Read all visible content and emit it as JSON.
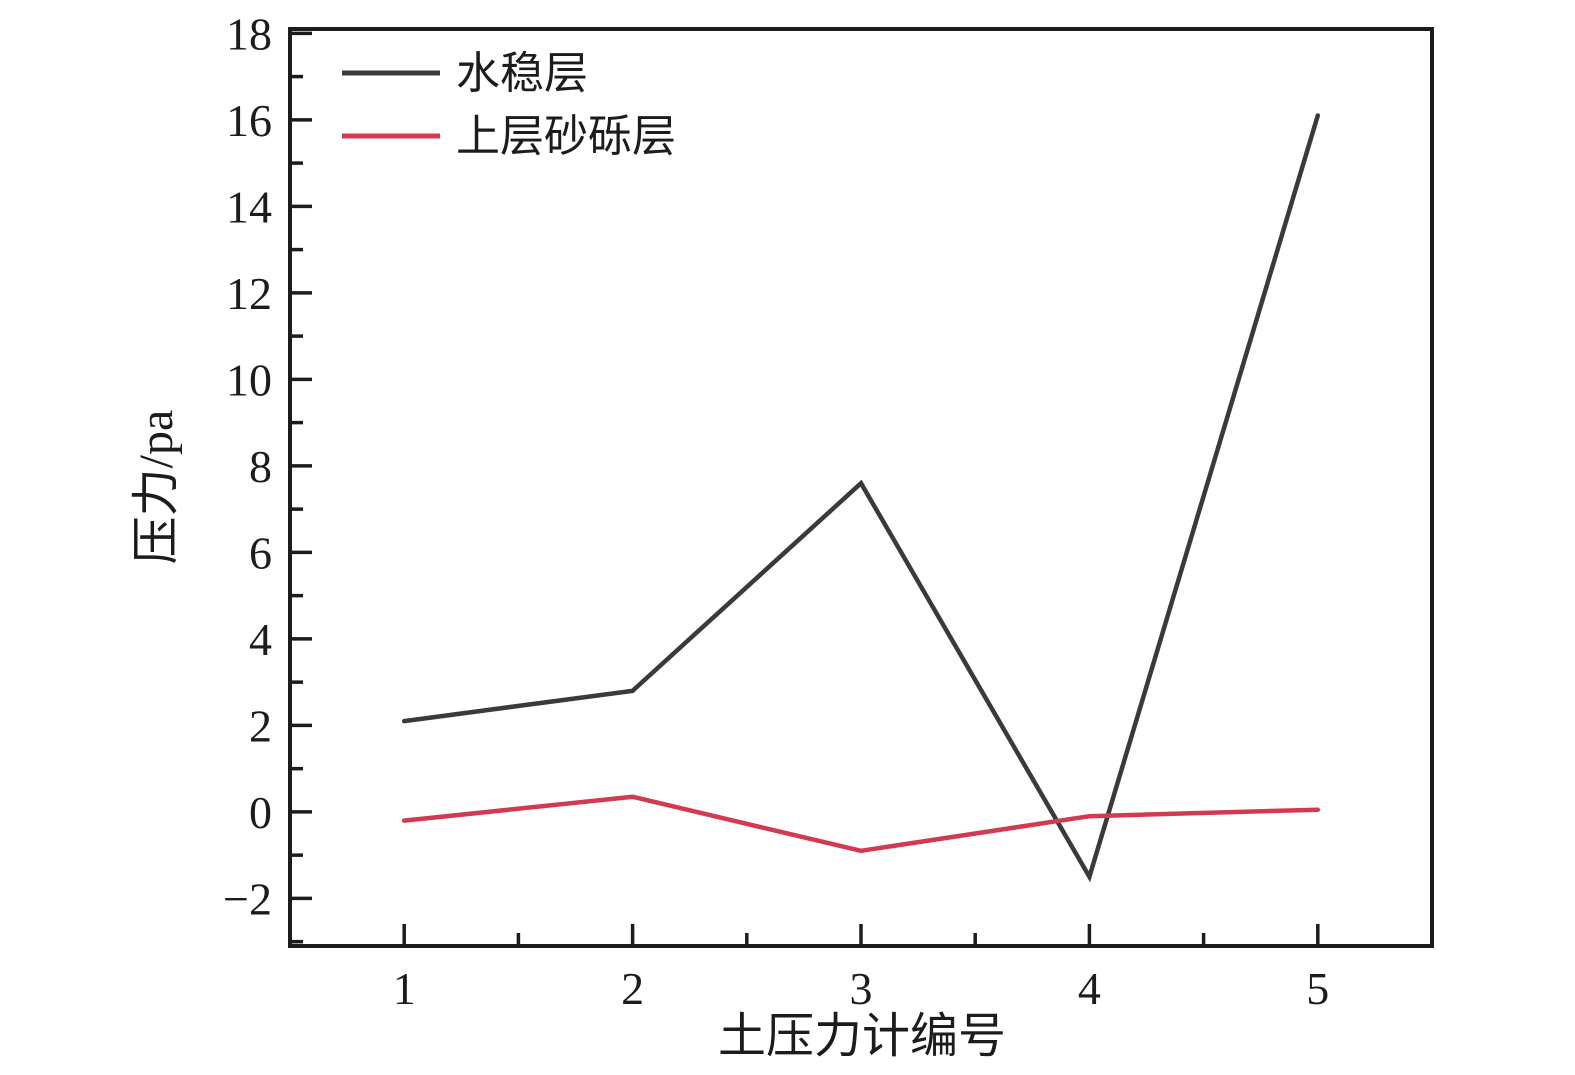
{
  "chart_data": {
    "type": "line",
    "title": "",
    "xlabel": "土压力计编号",
    "ylabel": "压力/pa",
    "x": [
      1,
      2,
      3,
      4,
      5
    ],
    "series": [
      {
        "name": "水稳层",
        "color": "#3a3a3a",
        "values": [
          2.1,
          2.8,
          7.6,
          -1.5,
          16.1
        ]
      },
      {
        "name": "上层砂砾层",
        "color": "#d13a4f",
        "values": [
          -0.2,
          0.35,
          -0.9,
          -0.1,
          0.05
        ]
      }
    ],
    "xlim": [
      0.5,
      5.5
    ],
    "ylim": [
      -3.1,
      18.1
    ],
    "x_major_ticks": [
      1,
      2,
      3,
      4,
      5
    ],
    "x_minor_ticks": [
      1.5,
      2.5,
      3.5,
      4.5
    ],
    "y_major_ticks": [
      -2,
      0,
      2,
      4,
      6,
      8,
      10,
      12,
      14,
      16,
      18
    ],
    "y_minor_ticks": [
      -3,
      -1,
      1,
      3,
      5,
      7,
      9,
      11,
      13,
      15,
      17
    ],
    "grid": false,
    "legend_position": "top-left",
    "axis_color": "#1c1c1c",
    "background_color": "#ffffff"
  }
}
